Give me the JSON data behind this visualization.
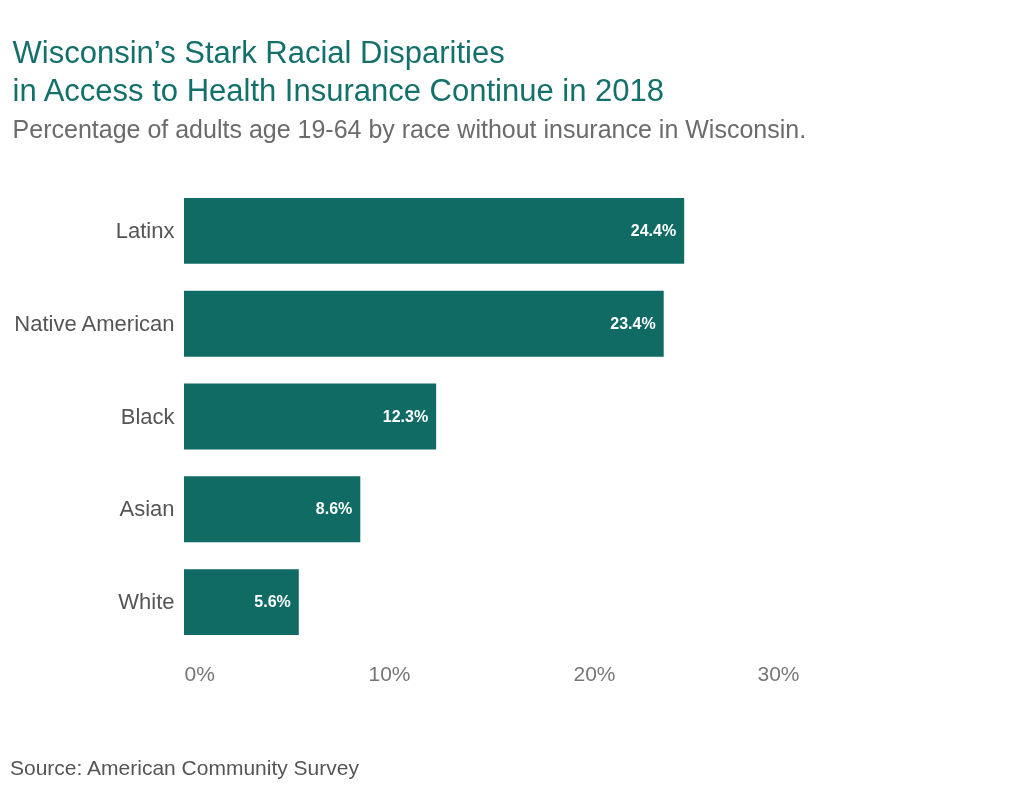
{
  "chart_data": {
    "type": "bar",
    "orientation": "horizontal",
    "title": [
      "Wisconsin’s Stark Racial Disparities",
      "in Access to Health Insurance Continue in 2018"
    ],
    "subtitle": "Percentage of adults age 19-64 by race without insurance in Wisconsin.",
    "categories": [
      "Latinx",
      "Native American",
      "Black",
      "Asian",
      "White"
    ],
    "values": [
      24.4,
      23.4,
      12.3,
      8.6,
      5.6
    ],
    "color": "#0f6b64",
    "xlim": [
      0,
      30
    ],
    "xticks": [
      {
        "value": 0,
        "label": "0%"
      },
      {
        "value": 10,
        "label": "10%"
      },
      {
        "value": 20,
        "label": "20%"
      },
      {
        "value": 30,
        "label": "30%"
      }
    ],
    "value_labels": [
      "24.4%",
      "23.4%",
      "12.3%",
      "8.6%",
      "5.6%"
    ],
    "annotations": [
      "Source: American Community Survey"
    ]
  }
}
